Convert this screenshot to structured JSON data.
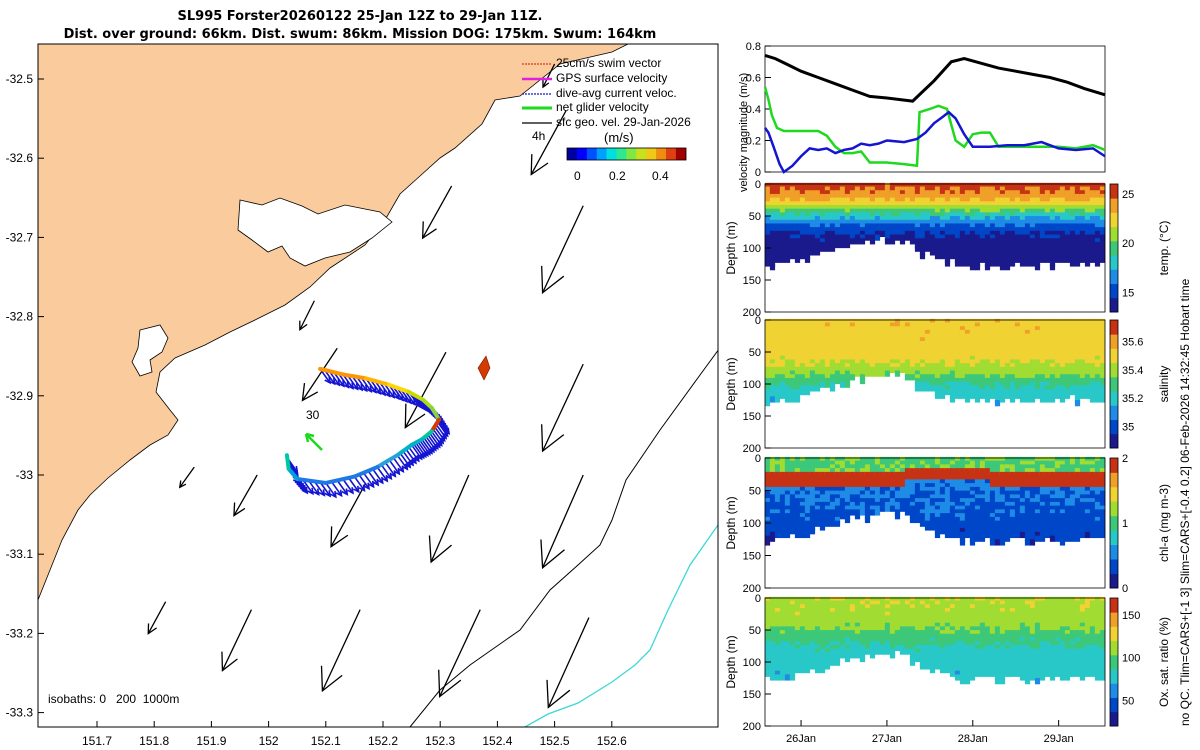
{
  "header": {
    "title_line1": "SL995 Forster20260122 25-Jan 12Z to 29-Jan 11Z.",
    "title_line2": "Dist. over ground: 66km. Dist. swum: 86km. Mission DOG: 175km. Swum: 164km"
  },
  "side_note": "no QC. Tlim=CARS+[-1 3] Slim=CARS+[-0.4 0.2] 06-Feb-2026 14:32:45 Hobart time",
  "colors": {
    "land": "#FACB9C",
    "vel_black": "#000000",
    "vel_green": "#1ED91E",
    "vel_blue": "#1414D2",
    "isobath_200": "#000000",
    "isobath_1000": "#3CD8D8"
  },
  "chart_data": [
    {
      "type": "map",
      "name": "glider-track-map",
      "xticks": [
        "151.7",
        "151.8",
        "151.9",
        "152",
        "152.1",
        "152.2",
        "152.3",
        "152.4",
        "152.5",
        "152.6"
      ],
      "yticks": [
        "-32.5",
        "-32.6",
        "-32.7",
        "-32.8",
        "-32.9",
        "-33",
        "-33.1",
        "-33.2",
        "-33.3"
      ],
      "legend": [
        "25cm/s swim vector",
        "GPS surface velocity",
        "dive-avg current veloc.",
        "net glider velocity",
        "sfc geo. vel. 29-Jan-2026"
      ],
      "legend_colors": [
        "#E8341C",
        "#E020E0",
        "#1414D2",
        "#1ED91E",
        "#000000"
      ],
      "speed_colorbar": {
        "label": "(m/s)",
        "ticks": [
          "0",
          "0.2",
          "0.4"
        ],
        "range": [
          0,
          0.5
        ]
      },
      "label_4h": "4h",
      "label_30": "30",
      "isobaths_label": "isobaths: 0   200  1000m",
      "track": [
        [
          152.09,
          -32.866
        ],
        [
          152.13,
          -32.873
        ],
        [
          152.17,
          -32.878
        ],
        [
          152.21,
          -32.886
        ],
        [
          152.245,
          -32.895
        ],
        [
          152.27,
          -32.905
        ],
        [
          152.285,
          -32.915
        ],
        [
          152.298,
          -32.93
        ],
        [
          152.285,
          -32.945
        ],
        [
          152.268,
          -32.955
        ],
        [
          152.25,
          -32.962
        ],
        [
          152.225,
          -32.975
        ],
        [
          152.19,
          -32.99
        ],
        [
          152.15,
          -33.002
        ],
        [
          152.1,
          -33.01
        ],
        [
          152.05,
          -33.005
        ],
        [
          152.035,
          -32.992
        ],
        [
          152.032,
          -32.975
        ]
      ],
      "track_colors": [
        "#FF9600",
        "#FF9600",
        "#FFB400",
        "#FFD700",
        "#C8DC00",
        "#AADC1E",
        "#8CD23C",
        "#D23C00",
        "#00C896",
        "#00B4C8",
        "#00B4C8",
        "#28A0DC",
        "#1E78E6",
        "#1E78E6",
        "#1E78E6",
        "#00A0DC",
        "#00C8A0",
        "#1ED91E"
      ],
      "geo_vectors": [
        {
          "lon": 152.52,
          "lat": -32.54,
          "u": -0.12,
          "v": -0.22
        },
        {
          "lon": 152.32,
          "lat": -32.635,
          "u": -0.1,
          "v": -0.18
        },
        {
          "lon": 152.55,
          "lat": -32.66,
          "u": -0.14,
          "v": -0.3
        },
        {
          "lon": 152.08,
          "lat": -32.78,
          "u": -0.05,
          "v": -0.1
        },
        {
          "lon": 152.12,
          "lat": -32.84,
          "u": -0.12,
          "v": -0.18
        },
        {
          "lon": 152.31,
          "lat": -32.845,
          "u": -0.14,
          "v": -0.26
        },
        {
          "lon": 152.55,
          "lat": -32.86,
          "u": -0.14,
          "v": -0.3
        },
        {
          "lon": 151.87,
          "lat": -32.99,
          "u": -0.05,
          "v": -0.07
        },
        {
          "lon": 151.98,
          "lat": -33.0,
          "u": -0.08,
          "v": -0.14
        },
        {
          "lon": 152.17,
          "lat": -33.01,
          "u": -0.12,
          "v": -0.22
        },
        {
          "lon": 152.35,
          "lat": -33.0,
          "u": -0.13,
          "v": -0.3
        },
        {
          "lon": 152.55,
          "lat": -33.0,
          "u": -0.14,
          "v": -0.32
        },
        {
          "lon": 151.82,
          "lat": -33.16,
          "u": -0.06,
          "v": -0.11
        },
        {
          "lon": 151.97,
          "lat": -33.17,
          "u": -0.1,
          "v": -0.21
        },
        {
          "lon": 152.16,
          "lat": -33.17,
          "u": -0.13,
          "v": -0.28
        },
        {
          "lon": 152.37,
          "lat": -33.17,
          "u": -0.14,
          "v": -0.3
        },
        {
          "lon": 152.56,
          "lat": -33.18,
          "u": -0.14,
          "v": -0.31
        },
        {
          "lon": 152.5,
          "lat": -32.481,
          "u": -0.04,
          "v": -0.08
        }
      ]
    },
    {
      "type": "line",
      "name": "velocity-magnitude-plot",
      "ylabel": "velocity magnitude (m/s)",
      "yticks": [
        "0",
        "0.2",
        "0.4",
        "0.6",
        "0.8"
      ],
      "ylim": [
        0,
        0.8
      ],
      "xlim": [
        25.58,
        29.54
      ],
      "series": [
        {
          "name": "surface geostrophic",
          "color": "#000000",
          "x": [
            25.58,
            25.7,
            25.85,
            26.0,
            26.2,
            26.4,
            26.6,
            26.8,
            27.0,
            27.3,
            27.55,
            27.75,
            27.9,
            28.1,
            28.3,
            28.5,
            28.7,
            28.9,
            29.1,
            29.3,
            29.54
          ],
          "y": [
            0.74,
            0.72,
            0.68,
            0.64,
            0.6,
            0.56,
            0.52,
            0.48,
            0.47,
            0.45,
            0.58,
            0.7,
            0.72,
            0.69,
            0.66,
            0.64,
            0.62,
            0.6,
            0.57,
            0.53,
            0.49
          ]
        },
        {
          "name": "net glider velocity",
          "color": "#1ED91E",
          "x": [
            25.58,
            25.62,
            25.66,
            25.72,
            25.8,
            25.9,
            26.0,
            26.1,
            26.2,
            26.3,
            26.4,
            26.5,
            26.6,
            26.7,
            26.8,
            26.9,
            27.0,
            27.2,
            27.35,
            27.38,
            27.5,
            27.6,
            27.7,
            27.8,
            27.9,
            28.0,
            28.1,
            28.2,
            28.3,
            28.4,
            28.6,
            28.8,
            29.0,
            29.2,
            29.4,
            29.54
          ],
          "y": [
            0.54,
            0.46,
            0.36,
            0.28,
            0.26,
            0.26,
            0.26,
            0.26,
            0.26,
            0.23,
            0.16,
            0.12,
            0.12,
            0.13,
            0.06,
            0.06,
            0.06,
            0.05,
            0.04,
            0.38,
            0.4,
            0.42,
            0.4,
            0.2,
            0.16,
            0.24,
            0.25,
            0.25,
            0.16,
            0.16,
            0.16,
            0.16,
            0.16,
            0.15,
            0.17,
            0.14
          ]
        },
        {
          "name": "dive-avg current",
          "color": "#1414D2",
          "x": [
            25.58,
            25.62,
            25.68,
            25.75,
            25.8,
            25.9,
            26.0,
            26.1,
            26.2,
            26.3,
            26.4,
            26.5,
            26.6,
            26.7,
            26.8,
            26.9,
            27.0,
            27.2,
            27.35,
            27.45,
            27.55,
            27.65,
            27.72,
            27.8,
            27.9,
            28.0,
            28.2,
            28.4,
            28.6,
            28.8,
            29.0,
            29.2,
            29.4,
            29.54
          ],
          "y": [
            0.28,
            0.25,
            0.16,
            0.05,
            0.0,
            0.04,
            0.1,
            0.15,
            0.14,
            0.15,
            0.12,
            0.14,
            0.15,
            0.18,
            0.17,
            0.18,
            0.2,
            0.19,
            0.21,
            0.25,
            0.31,
            0.35,
            0.38,
            0.34,
            0.24,
            0.16,
            0.16,
            0.17,
            0.17,
            0.19,
            0.15,
            0.14,
            0.15,
            0.1
          ]
        }
      ]
    },
    {
      "type": "heatmap",
      "name": "temperature-section",
      "ylabel": "Depth (m)",
      "yticks": [
        "0",
        "50",
        "100",
        "150",
        "200"
      ],
      "ylim": [
        0,
        200
      ],
      "colorbar_label": "temp. (°C)",
      "colorbar_ticks": [
        "15",
        "20",
        "25"
      ],
      "crange": [
        13,
        26
      ],
      "palette": [
        "#1A1A8C",
        "#0046C8",
        "#1E8CE6",
        "#28C8C8",
        "#3CC878",
        "#A0DC32",
        "#F0D232",
        "#F0A028",
        "#C83214"
      ],
      "surface": 25.6,
      "deep": 13.5,
      "thermocline_m": 45
    },
    {
      "type": "heatmap",
      "name": "salinity-section",
      "ylabel": "Depth (m)",
      "yticks": [
        "0",
        "50",
        "100",
        "150",
        "200"
      ],
      "ylim": [
        0,
        200
      ],
      "colorbar_label": "salinity",
      "colorbar_ticks": [
        "35",
        "35.2",
        "35.4",
        "35.6"
      ],
      "crange": [
        34.85,
        35.75
      ],
      "palette": [
        "#1A1A8C",
        "#0046C8",
        "#1E8CE6",
        "#28C8C8",
        "#3CC878",
        "#A0DC32",
        "#F0D232",
        "#F0A028",
        "#C83214"
      ],
      "surface": 35.52,
      "deep": 35.15,
      "thermocline_m": 90
    },
    {
      "type": "heatmap",
      "name": "chlorophyll-section",
      "ylabel": "Depth (m)",
      "yticks": [
        "0",
        "50",
        "100",
        "150",
        "200"
      ],
      "ylim": [
        0,
        200
      ],
      "colorbar_label": "chl-a (mg m-3)",
      "colorbar_ticks": [
        "0",
        "1",
        "2"
      ],
      "crange": [
        0,
        2
      ],
      "palette": [
        "#1A1A8C",
        "#0046C8",
        "#1E8CE6",
        "#28C8C8",
        "#3CC878",
        "#A0DC32",
        "#F0D232",
        "#F0A028",
        "#C83214"
      ],
      "max_layer_m": 35
    },
    {
      "type": "heatmap",
      "name": "oxygen-section",
      "ylabel": "Depth (m)",
      "yticks": [
        "0",
        "50",
        "100",
        "150",
        "200"
      ],
      "ylim": [
        0,
        200
      ],
      "colorbar_label": "Ox. sat. ratio (%)",
      "colorbar_ticks": [
        "50",
        "100",
        "150"
      ],
      "crange": [
        20,
        170
      ],
      "palette": [
        "#1A1A8C",
        "#0046C8",
        "#1E8CE6",
        "#28C8C8",
        "#3CC878",
        "#A0DC32",
        "#F0D232",
        "#F0A028",
        "#C83214"
      ],
      "surface": 118,
      "deep": 75,
      "thermocline_m": 60
    },
    {
      "type": "axis",
      "name": "time-axis",
      "xticks": [
        "26Jan",
        "27Jan",
        "28Jan",
        "29Jan"
      ],
      "xtick_values": [
        26,
        27,
        28,
        29
      ],
      "xlim": [
        25.58,
        29.54
      ],
      "profile_bottom_m": [
        [
          25.58,
          128
        ],
        [
          25.9,
          122
        ],
        [
          26.2,
          112
        ],
        [
          26.5,
          98
        ],
        [
          26.8,
          88
        ],
        [
          27.0,
          85
        ],
        [
          27.2,
          87
        ],
        [
          27.4,
          105
        ],
        [
          27.6,
          118
        ],
        [
          27.9,
          125
        ],
        [
          28.3,
          128
        ],
        [
          28.7,
          126
        ],
        [
          29.1,
          124
        ],
        [
          29.54,
          122
        ]
      ]
    }
  ]
}
